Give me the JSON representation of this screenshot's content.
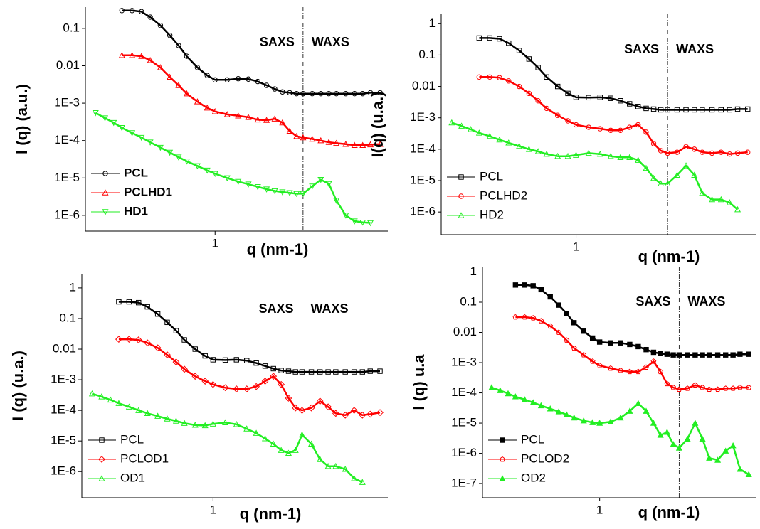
{
  "chart_data": [
    {
      "type": "line",
      "xlabel": "q (nm-1)",
      "ylabel": "I (q) (a.u.)",
      "xscale": "log",
      "yscale": "log",
      "legend": "lower left",
      "legend_bold": true,
      "annotations": [
        "SAXS",
        "WAXS"
      ],
      "divider": 2.0,
      "xlim": [
        0.36,
        3.9
      ],
      "xticks": [
        1
      ],
      "ylim": [
        3.8e-07,
        0.37
      ],
      "yticks": [
        0.1,
        0.01,
        {
          "value": 0.001,
          "label": "1E-3"
        },
        {
          "value": 0.0001,
          "label": "1E-4"
        },
        {
          "value": 1e-05,
          "label": "1E-5"
        },
        {
          "value": 1e-06,
          "label": "1E-6"
        }
      ],
      "x": [
        0.39,
        0.42,
        0.45,
        0.48,
        0.52,
        0.56,
        0.6,
        0.65,
        0.7,
        0.75,
        0.8,
        0.87,
        0.94,
        1.0,
        1.1,
        1.2,
        1.3,
        1.4,
        1.5,
        1.6,
        1.7,
        1.8,
        1.9,
        2.0,
        2.15,
        2.3,
        2.45,
        2.6,
        2.8,
        3.0,
        3.2,
        3.4,
        3.67
      ],
      "series": [
        {
          "name": "PCL",
          "color": "#000000",
          "marker": "circle",
          "filled": false,
          "values": [
            null,
            null,
            null,
            0.3,
            0.3,
            0.28,
            0.2,
            0.12,
            0.065,
            0.035,
            0.018,
            0.009,
            0.0055,
            0.0042,
            0.0042,
            0.0045,
            0.0044,
            0.0038,
            0.003,
            0.0024,
            0.002,
            0.0019,
            0.0018,
            0.0018,
            0.0018,
            0.0018,
            0.0018,
            0.0018,
            0.0018,
            0.0018,
            0.0018,
            0.0019,
            0.0019
          ]
        },
        {
          "name": "PCLHD1",
          "color": "#ff0000",
          "marker": "triangle-up",
          "filled": false,
          "values": [
            null,
            null,
            null,
            0.019,
            0.019,
            0.018,
            0.014,
            0.009,
            0.005,
            0.003,
            0.0018,
            0.0011,
            0.00075,
            0.0006,
            0.0005,
            0.00046,
            0.00042,
            0.00036,
            0.00035,
            0.00038,
            0.0003,
            0.00018,
            0.00013,
            0.00012,
            0.00011,
            0.0001,
            9e-05,
            8.5e-05,
            8e-05,
            7.5e-05,
            7.5e-05,
            7.8e-05,
            8e-05
          ]
        },
        {
          "name": "HD1",
          "color": "#22ee22",
          "marker": "triangle-down",
          "filled": false,
          "values": [
            0.00055,
            0.0004,
            0.0003,
            0.00022,
            0.00016,
            0.00012,
            9e-05,
            6.5e-05,
            4.8e-05,
            3.6e-05,
            2.8e-05,
            2.1e-05,
            1.6e-05,
            1.3e-05,
            1e-05,
            8e-06,
            6.8e-06,
            5.8e-06,
            5e-06,
            4.5e-06,
            4.2e-06,
            4e-06,
            3.8e-06,
            3.8e-06,
            6e-06,
            9e-06,
            7e-06,
            2.5e-06,
            1e-06,
            7e-07,
            6.5e-07,
            6.3e-07,
            null
          ]
        }
      ]
    },
    {
      "type": "line",
      "xlabel": "q (nm-1)",
      "ylabel": "I(q) (u.a.)",
      "xscale": "log",
      "yscale": "log",
      "legend": "lower left",
      "legend_bold": false,
      "annotations": [
        "SAXS",
        "WAXS"
      ],
      "divider": 2.0,
      "xlim": [
        0.36,
        3.9
      ],
      "xticks": [
        1
      ],
      "ylim": [
        1.9e-07,
        2
      ],
      "yticks": [
        1,
        0.1,
        0.01,
        {
          "value": 0.001,
          "label": "1E-3"
        },
        {
          "value": 0.0001,
          "label": "1E-4"
        },
        {
          "value": 1e-05,
          "label": "1E-5"
        },
        {
          "value": 1e-06,
          "label": "1E-6"
        }
      ],
      "x": [
        0.39,
        0.42,
        0.45,
        0.48,
        0.52,
        0.56,
        0.6,
        0.65,
        0.7,
        0.75,
        0.8,
        0.87,
        0.94,
        1.0,
        1.1,
        1.2,
        1.3,
        1.4,
        1.5,
        1.6,
        1.7,
        1.8,
        1.9,
        2.0,
        2.15,
        2.3,
        2.45,
        2.6,
        2.8,
        3.0,
        3.2,
        3.4,
        3.67
      ],
      "series": [
        {
          "name": "PCL",
          "color": "#000000",
          "marker": "square",
          "filled": false,
          "values": [
            null,
            null,
            null,
            0.35,
            0.35,
            0.33,
            0.24,
            0.14,
            0.075,
            0.04,
            0.02,
            0.01,
            0.006,
            0.0045,
            0.0044,
            0.0045,
            0.0042,
            0.0035,
            0.0028,
            0.0023,
            0.002,
            0.0019,
            0.0018,
            0.0018,
            0.0018,
            0.0018,
            0.0018,
            0.0018,
            0.0018,
            0.0018,
            0.0018,
            0.0019,
            0.0019
          ]
        },
        {
          "name": "PCLHD2",
          "color": "#ff0000",
          "marker": "circle",
          "filled": false,
          "values": [
            null,
            null,
            null,
            0.02,
            0.02,
            0.019,
            0.015,
            0.01,
            0.006,
            0.0035,
            0.002,
            0.0012,
            0.0008,
            0.0006,
            0.0005,
            0.00045,
            0.0004,
            0.0004,
            0.0005,
            0.0006,
            0.00035,
            0.00015,
            9e-05,
            7.5e-05,
            8e-05,
            0.00012,
            0.0001,
            8e-05,
            7.5e-05,
            8e-05,
            7e-05,
            7.5e-05,
            8e-05
          ]
        },
        {
          "name": "HD2",
          "color": "#22ee22",
          "marker": "triangle-up",
          "filled": false,
          "values": [
            0.0007,
            0.00055,
            0.00043,
            0.00033,
            0.00026,
            0.0002,
            0.00016,
            0.000125,
            0.0001,
            8.5e-05,
            7e-05,
            6e-05,
            6e-05,
            6.5e-05,
            7.5e-05,
            7e-05,
            6e-05,
            5.5e-05,
            5.5e-05,
            4.5e-05,
            2.5e-05,
            1.2e-05,
            8e-06,
            8e-06,
            1.5e-05,
            3e-05,
            1.5e-05,
            4e-06,
            2.5e-06,
            2.5e-06,
            2e-06,
            1.2e-06,
            null
          ]
        }
      ]
    },
    {
      "type": "line",
      "xlabel": "q (nm-1)",
      "ylabel": "I (q) (u.a.)",
      "xscale": "log",
      "yscale": "log",
      "legend": "lower left",
      "legend_bold": false,
      "annotations": [
        "SAXS",
        "WAXS"
      ],
      "divider": 2.0,
      "xlim": [
        0.36,
        3.9
      ],
      "xticks": [
        1
      ],
      "ylim": [
        1.4e-07,
        2.9
      ],
      "yticks": [
        1,
        0.1,
        0.01,
        {
          "value": 0.001,
          "label": "1E-3"
        },
        {
          "value": 0.0001,
          "label": "1E-4"
        },
        {
          "value": 1e-05,
          "label": "1E-5"
        },
        {
          "value": 1e-06,
          "label": "1E-6"
        }
      ],
      "x": [
        0.39,
        0.42,
        0.45,
        0.48,
        0.52,
        0.56,
        0.6,
        0.65,
        0.7,
        0.75,
        0.8,
        0.87,
        0.94,
        1.0,
        1.1,
        1.2,
        1.3,
        1.4,
        1.5,
        1.6,
        1.7,
        1.8,
        1.9,
        2.0,
        2.15,
        2.3,
        2.45,
        2.6,
        2.8,
        3.0,
        3.2,
        3.4,
        3.67
      ],
      "series": [
        {
          "name": "PCL",
          "color": "#000000",
          "marker": "square",
          "filled": false,
          "values": [
            null,
            null,
            null,
            0.35,
            0.35,
            0.33,
            0.24,
            0.14,
            0.075,
            0.04,
            0.02,
            0.01,
            0.006,
            0.0045,
            0.0044,
            0.0045,
            0.0042,
            0.0035,
            0.0028,
            0.0023,
            0.002,
            0.0019,
            0.0018,
            0.0018,
            0.0018,
            0.0018,
            0.0018,
            0.0018,
            0.0018,
            0.0018,
            0.0018,
            0.0019,
            0.0019
          ]
        },
        {
          "name": "PCLOD1",
          "color": "#ff0000",
          "marker": "diamond",
          "filled": false,
          "values": [
            null,
            null,
            null,
            0.021,
            0.021,
            0.02,
            0.016,
            0.011,
            0.0065,
            0.0038,
            0.0022,
            0.0013,
            0.0009,
            0.0007,
            0.00055,
            0.0005,
            0.0005,
            0.0006,
            0.0009,
            0.0013,
            0.0007,
            0.00025,
            0.00012,
            0.0001,
            0.00012,
            0.0002,
            0.00013,
            8e-05,
            7e-05,
            0.0001,
            7e-05,
            7.5e-05,
            8.5e-05
          ]
        },
        {
          "name": "OD1",
          "color": "#22ee22",
          "marker": "triangle-up",
          "filled": false,
          "values": [
            0.00035,
            0.00028,
            0.00022,
            0.00017,
            0.00013,
            0.0001,
            8e-05,
            6.5e-05,
            5.3e-05,
            4.5e-05,
            3.8e-05,
            3.3e-05,
            3.2e-05,
            3.6e-05,
            4e-05,
            3.5e-05,
            2.5e-05,
            1.8e-05,
            1.2e-05,
            8e-06,
            5e-06,
            4e-06,
            5e-06,
            1.6e-05,
            8e-06,
            2.5e-06,
            1.5e-06,
            1.5e-06,
            1.2e-06,
            6e-07,
            4.5e-07,
            null,
            null
          ]
        }
      ]
    },
    {
      "type": "line",
      "xlabel": "q (nm-1)",
      "ylabel": "I (q) u.a",
      "xscale": "log",
      "yscale": "log",
      "legend": "lower left",
      "legend_bold": false,
      "annotations": [
        "SAXS",
        "WAXS"
      ],
      "divider": 2.0,
      "xlim": [
        0.36,
        3.9
      ],
      "xticks": [
        1
      ],
      "ylim": [
        3.4e-08,
        1.5
      ],
      "yticks": [
        1,
        0.1,
        0.01,
        {
          "value": 0.001,
          "label": "1E-3"
        },
        {
          "value": 0.0001,
          "label": "1E-4"
        },
        {
          "value": 1e-05,
          "label": "1E-5"
        },
        {
          "value": 1e-06,
          "label": "1E-6"
        },
        {
          "value": 1e-07,
          "label": "1E-7"
        }
      ],
      "x": [
        0.39,
        0.42,
        0.45,
        0.48,
        0.52,
        0.56,
        0.6,
        0.65,
        0.7,
        0.75,
        0.8,
        0.87,
        0.94,
        1.0,
        1.1,
        1.2,
        1.3,
        1.4,
        1.5,
        1.6,
        1.7,
        1.8,
        1.9,
        2.0,
        2.15,
        2.3,
        2.45,
        2.6,
        2.8,
        3.0,
        3.2,
        3.4,
        3.67
      ],
      "series": [
        {
          "name": "PCL",
          "color": "#000000",
          "marker": "square",
          "filled": true,
          "values": [
            null,
            null,
            null,
            0.37,
            0.37,
            0.35,
            0.26,
            0.15,
            0.08,
            0.042,
            0.021,
            0.011,
            0.0065,
            0.0048,
            0.0045,
            0.0045,
            0.004,
            0.0034,
            0.0027,
            0.0022,
            0.002,
            0.0019,
            0.0018,
            0.0018,
            0.0018,
            0.0018,
            0.0018,
            0.0018,
            0.0018,
            0.0018,
            0.0018,
            0.0019,
            0.0019
          ]
        },
        {
          "name": "PCLOD2",
          "color": "#ff0000",
          "marker": "pentagon",
          "filled": false,
          "values": [
            null,
            null,
            null,
            0.032,
            0.032,
            0.03,
            0.024,
            0.016,
            0.01,
            0.0055,
            0.003,
            0.0018,
            0.0011,
            0.0008,
            0.00065,
            0.00055,
            0.0005,
            0.0005,
            0.0007,
            0.0011,
            0.0005,
            0.0002,
            0.00015,
            0.00013,
            0.00014,
            0.00018,
            0.00015,
            0.00013,
            0.00013,
            0.00014,
            0.00014,
            0.00015,
            0.00015
          ]
        },
        {
          "name": "OD2",
          "color": "#22ee22",
          "marker": "triangle-up",
          "filled": true,
          "values": [
            0.00015,
            0.00012,
            9.5e-05,
            7.5e-05,
            6e-05,
            4.8e-05,
            3.8e-05,
            3e-05,
            2.4e-05,
            1.9e-05,
            1.5e-05,
            1.2e-05,
            1.05e-05,
            1e-05,
            1.1e-05,
            1.5e-05,
            2.5e-05,
            4.5e-05,
            2.5e-05,
            1e-05,
            4e-06,
            5e-06,
            2e-06,
            1.5e-06,
            3e-06,
            1e-05,
            3e-06,
            7e-07,
            6e-07,
            1.2e-06,
            1.8e-06,
            3e-07,
            2e-07
          ]
        }
      ]
    }
  ]
}
